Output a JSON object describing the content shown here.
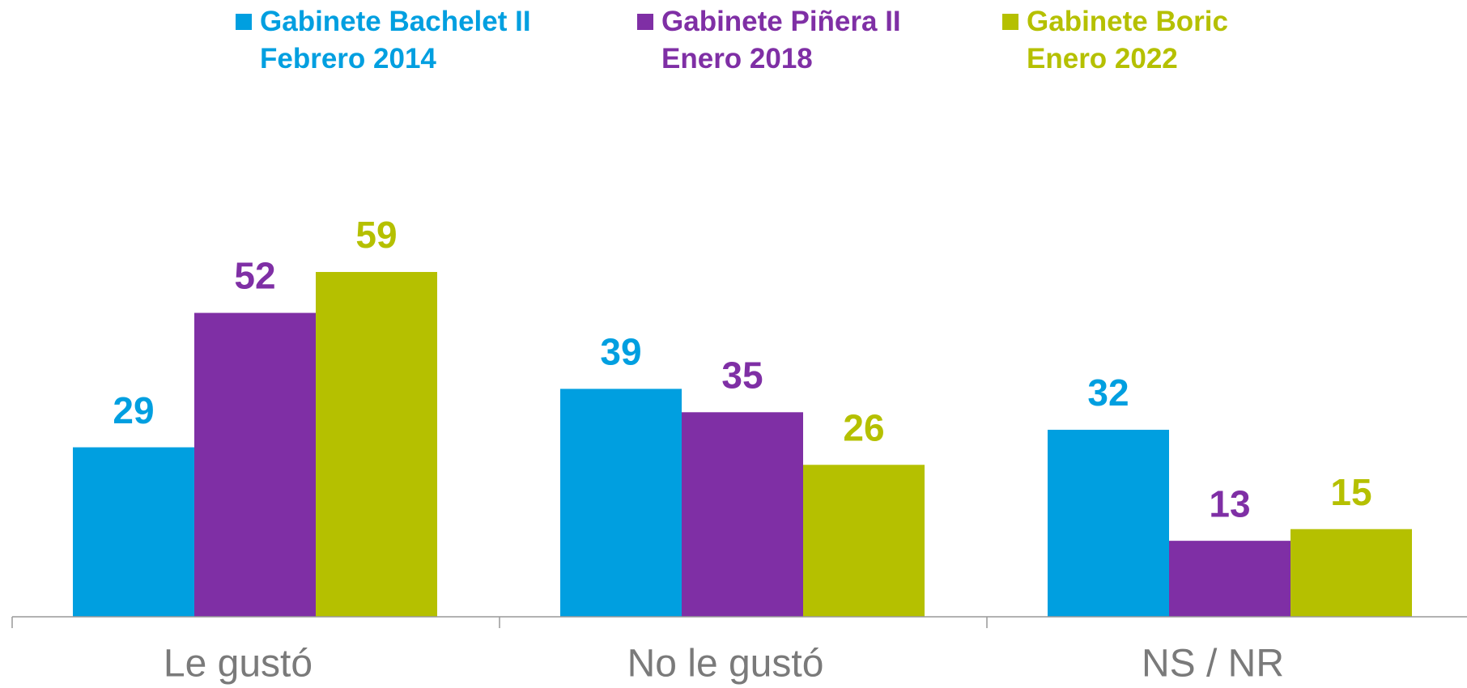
{
  "chart_data": {
    "type": "bar",
    "categories": [
      "Le gustó",
      "No le gustó",
      "NS / NR"
    ],
    "series": [
      {
        "name": "Gabinete Bachelet II\nFebrero 2014",
        "color": "#009fe0",
        "values": [
          29,
          39,
          32
        ]
      },
      {
        "name": "Gabinete Piñera II\nEnero 2018",
        "color": "#7f2fa5",
        "values": [
          52,
          35,
          13
        ]
      },
      {
        "name": "Gabinete Boric\nEnero 2022",
        "color": "#b5c000",
        "values": [
          59,
          26,
          15
        ]
      }
    ],
    "ylim": [
      0,
      100
    ]
  }
}
